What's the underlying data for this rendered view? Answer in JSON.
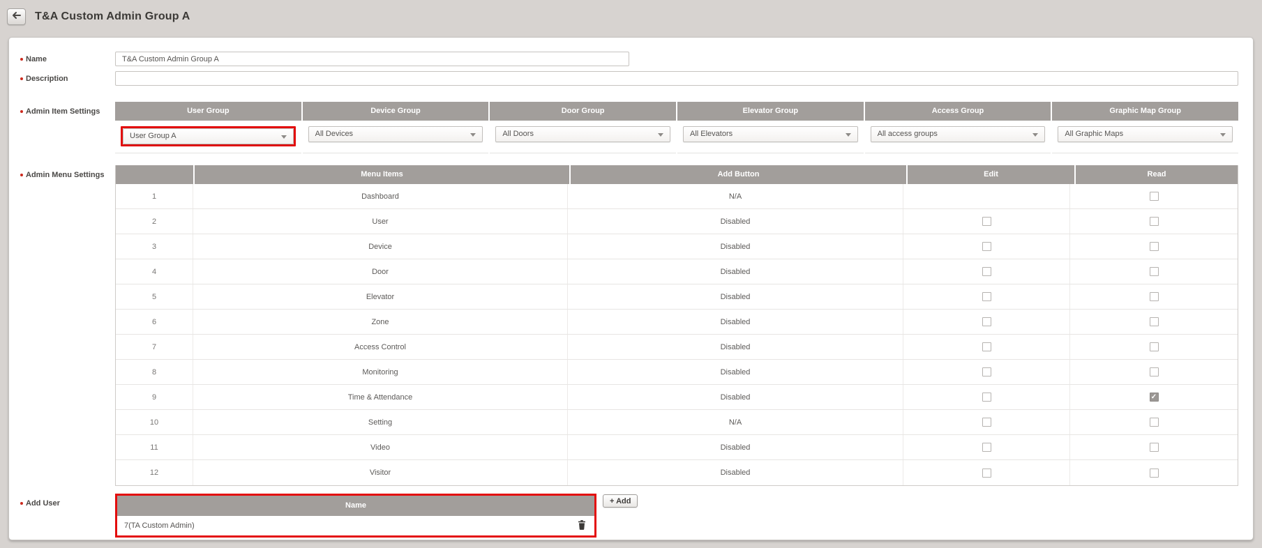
{
  "colors": {
    "accent_red": "#e30d0d",
    "table_header_gray": "#a29e9b",
    "page_background": "#d7d3d0",
    "checked_checkbox_gray": "#9b9794"
  },
  "header": {
    "title": "T&A Custom Admin Group A",
    "back_icon": "left-arrow"
  },
  "form": {
    "name": {
      "label": "Name",
      "value": "T&A Custom Admin Group A"
    },
    "description": {
      "label": "Description",
      "value": ""
    },
    "admin_item_settings": {
      "label": "Admin Item Settings",
      "columns": [
        "User Group",
        "Device Group",
        "Door Group",
        "Elevator Group",
        "Access Group",
        "Graphic Map Group"
      ],
      "dropdowns": [
        {
          "value": "User Group A",
          "highlighted": true
        },
        {
          "value": "All Devices",
          "highlighted": false
        },
        {
          "value": "All Doors",
          "highlighted": false
        },
        {
          "value": "All Elevators",
          "highlighted": false
        },
        {
          "value": "All access groups",
          "highlighted": false
        },
        {
          "value": "All Graphic Maps",
          "highlighted": false
        }
      ]
    },
    "admin_menu_settings": {
      "label": "Admin Menu Settings",
      "columns": [
        "",
        "Menu Items",
        "Add Button",
        "Edit",
        "Read"
      ],
      "rows": [
        {
          "num": "1",
          "menu": "Dashboard",
          "add_button": "N/A",
          "edit": null,
          "read": false
        },
        {
          "num": "2",
          "menu": "User",
          "add_button": "Disabled",
          "edit": false,
          "read": false
        },
        {
          "num": "3",
          "menu": "Device",
          "add_button": "Disabled",
          "edit": false,
          "read": false
        },
        {
          "num": "4",
          "menu": "Door",
          "add_button": "Disabled",
          "edit": false,
          "read": false
        },
        {
          "num": "5",
          "menu": "Elevator",
          "add_button": "Disabled",
          "edit": false,
          "read": false
        },
        {
          "num": "6",
          "menu": "Zone",
          "add_button": "Disabled",
          "edit": false,
          "read": false
        },
        {
          "num": "7",
          "menu": "Access Control",
          "add_button": "Disabled",
          "edit": false,
          "read": false
        },
        {
          "num": "8",
          "menu": "Monitoring",
          "add_button": "Disabled",
          "edit": false,
          "read": false
        },
        {
          "num": "9",
          "menu": "Time & Attendance",
          "add_button": "Disabled",
          "edit": false,
          "read": true
        },
        {
          "num": "10",
          "menu": "Setting",
          "add_button": "N/A",
          "edit": false,
          "read": false
        },
        {
          "num": "11",
          "menu": "Video",
          "add_button": "Disabled",
          "edit": false,
          "read": false
        },
        {
          "num": "12",
          "menu": "Visitor",
          "add_button": "Disabled",
          "edit": false,
          "read": false
        }
      ]
    },
    "add_user": {
      "label": "Add User",
      "add_button_label": "+ Add",
      "columns": [
        "Name"
      ],
      "rows": [
        {
          "name": "7(TA Custom Admin)"
        }
      ]
    }
  }
}
